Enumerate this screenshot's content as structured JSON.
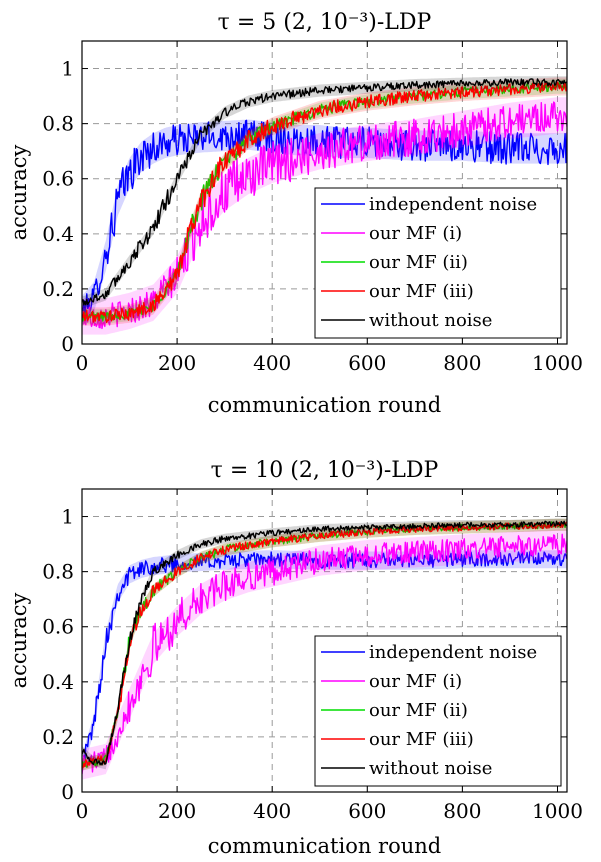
{
  "chart_data": [
    {
      "type": "line",
      "title": "τ = 5  (2, 10⁻³)-LDP",
      "xlabel": "communication round",
      "ylabel": "accuracy",
      "xlim": [
        0,
        1020
      ],
      "ylim": [
        0,
        1.1
      ],
      "xticks": [
        0,
        200,
        400,
        600,
        800,
        1000
      ],
      "xtick_labels": [
        "0",
        "200",
        "400",
        "600",
        "800",
        "1000"
      ],
      "yticks": [
        0,
        0.2,
        0.4,
        0.6,
        0.8,
        1
      ],
      "ytick_labels": [
        "0",
        "0.2",
        "0.4",
        "0.6",
        "0.8",
        "1"
      ],
      "grid": true,
      "legend_position": "bottom-right",
      "series": [
        {
          "name": "independent noise",
          "color": "#0000ff",
          "noise": 0.025,
          "points": [
            [
              0,
              0.12
            ],
            [
              25,
              0.17
            ],
            [
              50,
              0.32
            ],
            [
              75,
              0.52
            ],
            [
              100,
              0.62
            ],
            [
              125,
              0.68
            ],
            [
              150,
              0.71
            ],
            [
              175,
              0.73
            ],
            [
              200,
              0.74
            ],
            [
              250,
              0.75
            ],
            [
              300,
              0.755
            ],
            [
              350,
              0.76
            ],
            [
              400,
              0.75
            ],
            [
              450,
              0.74
            ],
            [
              500,
              0.74
            ],
            [
              550,
              0.73
            ],
            [
              600,
              0.73
            ],
            [
              700,
              0.72
            ],
            [
              800,
              0.72
            ],
            [
              900,
              0.71
            ],
            [
              1000,
              0.71
            ],
            [
              1020,
              0.71
            ]
          ]
        },
        {
          "name": "our MF (i)",
          "color": "#ff00ff",
          "noise": 0.03,
          "points": [
            [
              0,
              0.1
            ],
            [
              50,
              0.1
            ],
            [
              100,
              0.12
            ],
            [
              150,
              0.15
            ],
            [
              200,
              0.25
            ],
            [
              250,
              0.45
            ],
            [
              300,
              0.55
            ],
            [
              350,
              0.61
            ],
            [
              400,
              0.65
            ],
            [
              500,
              0.7
            ],
            [
              600,
              0.73
            ],
            [
              700,
              0.75
            ],
            [
              800,
              0.78
            ],
            [
              900,
              0.81
            ],
            [
              1000,
              0.83
            ],
            [
              1020,
              0.83
            ]
          ]
        },
        {
          "name": "our MF (ii)",
          "color": "#00dd00",
          "noise": 0.012,
          "points": [
            [
              0,
              0.1
            ],
            [
              50,
              0.1
            ],
            [
              100,
              0.11
            ],
            [
              150,
              0.14
            ],
            [
              200,
              0.25
            ],
            [
              225,
              0.4
            ],
            [
              250,
              0.52
            ],
            [
              275,
              0.6
            ],
            [
              300,
              0.66
            ],
            [
              350,
              0.74
            ],
            [
              400,
              0.79
            ],
            [
              450,
              0.82
            ],
            [
              500,
              0.85
            ],
            [
              600,
              0.88
            ],
            [
              700,
              0.9
            ],
            [
              800,
              0.915
            ],
            [
              900,
              0.925
            ],
            [
              1000,
              0.935
            ],
            [
              1020,
              0.935
            ]
          ]
        },
        {
          "name": "our MF (iii)",
          "color": "#ff0000",
          "noise": 0.015,
          "points": [
            [
              0,
              0.1
            ],
            [
              50,
              0.1
            ],
            [
              100,
              0.11
            ],
            [
              150,
              0.14
            ],
            [
              200,
              0.25
            ],
            [
              225,
              0.4
            ],
            [
              250,
              0.52
            ],
            [
              275,
              0.6
            ],
            [
              300,
              0.66
            ],
            [
              350,
              0.74
            ],
            [
              400,
              0.79
            ],
            [
              450,
              0.82
            ],
            [
              500,
              0.85
            ],
            [
              600,
              0.88
            ],
            [
              700,
              0.9
            ],
            [
              800,
              0.915
            ],
            [
              900,
              0.925
            ],
            [
              1000,
              0.935
            ],
            [
              1020,
              0.935
            ]
          ]
        },
        {
          "name": "without noise",
          "color": "#000000",
          "noise": 0.01,
          "points": [
            [
              0,
              0.15
            ],
            [
              50,
              0.18
            ],
            [
              100,
              0.3
            ],
            [
              150,
              0.42
            ],
            [
              200,
              0.6
            ],
            [
              225,
              0.68
            ],
            [
              250,
              0.76
            ],
            [
              300,
              0.84
            ],
            [
              350,
              0.88
            ],
            [
              400,
              0.9
            ],
            [
              500,
              0.92
            ],
            [
              600,
              0.93
            ],
            [
              700,
              0.94
            ],
            [
              800,
              0.945
            ],
            [
              900,
              0.95
            ],
            [
              1000,
              0.95
            ],
            [
              1020,
              0.95
            ]
          ]
        }
      ]
    },
    {
      "type": "line",
      "title": "τ = 10  (2, 10⁻³)-LDP",
      "xlabel": "communication round",
      "ylabel": "accuracy",
      "xlim": [
        0,
        1020
      ],
      "ylim": [
        0,
        1.1
      ],
      "xticks": [
        0,
        200,
        400,
        600,
        800,
        1000
      ],
      "xtick_labels": [
        "0",
        "200",
        "400",
        "600",
        "800",
        "1000"
      ],
      "yticks": [
        0,
        0.2,
        0.4,
        0.6,
        0.8,
        1
      ],
      "ytick_labels": [
        "0",
        "0.2",
        "0.4",
        "0.6",
        "0.8",
        "1"
      ],
      "grid": true,
      "legend_position": "bottom-right",
      "series": [
        {
          "name": "independent noise",
          "color": "#0000ff",
          "noise": 0.015,
          "points": [
            [
              0,
              0.1
            ],
            [
              25,
              0.25
            ],
            [
              50,
              0.55
            ],
            [
              75,
              0.72
            ],
            [
              100,
              0.79
            ],
            [
              125,
              0.81
            ],
            [
              150,
              0.82
            ],
            [
              200,
              0.83
            ],
            [
              300,
              0.84
            ],
            [
              400,
              0.845
            ],
            [
              500,
              0.84
            ],
            [
              600,
              0.84
            ],
            [
              700,
              0.84
            ],
            [
              800,
              0.845
            ],
            [
              900,
              0.845
            ],
            [
              1000,
              0.845
            ],
            [
              1020,
              0.845
            ]
          ]
        },
        {
          "name": "our MF (i)",
          "color": "#ff00ff",
          "noise": 0.025,
          "points": [
            [
              0,
              0.1
            ],
            [
              50,
              0.12
            ],
            [
              100,
              0.32
            ],
            [
              150,
              0.52
            ],
            [
              200,
              0.62
            ],
            [
              250,
              0.7
            ],
            [
              300,
              0.75
            ],
            [
              350,
              0.78
            ],
            [
              400,
              0.8
            ],
            [
              500,
              0.84
            ],
            [
              600,
              0.86
            ],
            [
              700,
              0.87
            ],
            [
              800,
              0.88
            ],
            [
              900,
              0.89
            ],
            [
              1000,
              0.9
            ],
            [
              1020,
              0.9
            ]
          ]
        },
        {
          "name": "our MF (ii)",
          "color": "#00dd00",
          "noise": 0.01,
          "points": [
            [
              0,
              0.1
            ],
            [
              50,
              0.12
            ],
            [
              75,
              0.28
            ],
            [
              100,
              0.55
            ],
            [
              125,
              0.66
            ],
            [
              150,
              0.73
            ],
            [
              200,
              0.8
            ],
            [
              250,
              0.85
            ],
            [
              300,
              0.88
            ],
            [
              400,
              0.91
            ],
            [
              500,
              0.93
            ],
            [
              600,
              0.945
            ],
            [
              700,
              0.955
            ],
            [
              800,
              0.96
            ],
            [
              900,
              0.965
            ],
            [
              1000,
              0.97
            ],
            [
              1020,
              0.97
            ]
          ]
        },
        {
          "name": "our MF (iii)",
          "color": "#ff0000",
          "noise": 0.01,
          "points": [
            [
              0,
              0.1
            ],
            [
              50,
              0.12
            ],
            [
              75,
              0.28
            ],
            [
              100,
              0.55
            ],
            [
              125,
              0.66
            ],
            [
              150,
              0.73
            ],
            [
              200,
              0.8
            ],
            [
              250,
              0.85
            ],
            [
              300,
              0.88
            ],
            [
              400,
              0.91
            ],
            [
              500,
              0.93
            ],
            [
              600,
              0.945
            ],
            [
              700,
              0.955
            ],
            [
              800,
              0.96
            ],
            [
              900,
              0.965
            ],
            [
              1000,
              0.97
            ],
            [
              1020,
              0.97
            ]
          ]
        },
        {
          "name": "without noise",
          "color": "#000000",
          "noise": 0.008,
          "points": [
            [
              0,
              0.15
            ],
            [
              25,
              0.11
            ],
            [
              50,
              0.1
            ],
            [
              75,
              0.3
            ],
            [
              100,
              0.55
            ],
            [
              125,
              0.7
            ],
            [
              150,
              0.8
            ],
            [
              200,
              0.86
            ],
            [
              250,
              0.9
            ],
            [
              300,
              0.92
            ],
            [
              400,
              0.94
            ],
            [
              500,
              0.955
            ],
            [
              600,
              0.96
            ],
            [
              700,
              0.965
            ],
            [
              800,
              0.97
            ],
            [
              900,
              0.97
            ],
            [
              1000,
              0.975
            ],
            [
              1020,
              0.975
            ]
          ]
        }
      ]
    }
  ]
}
